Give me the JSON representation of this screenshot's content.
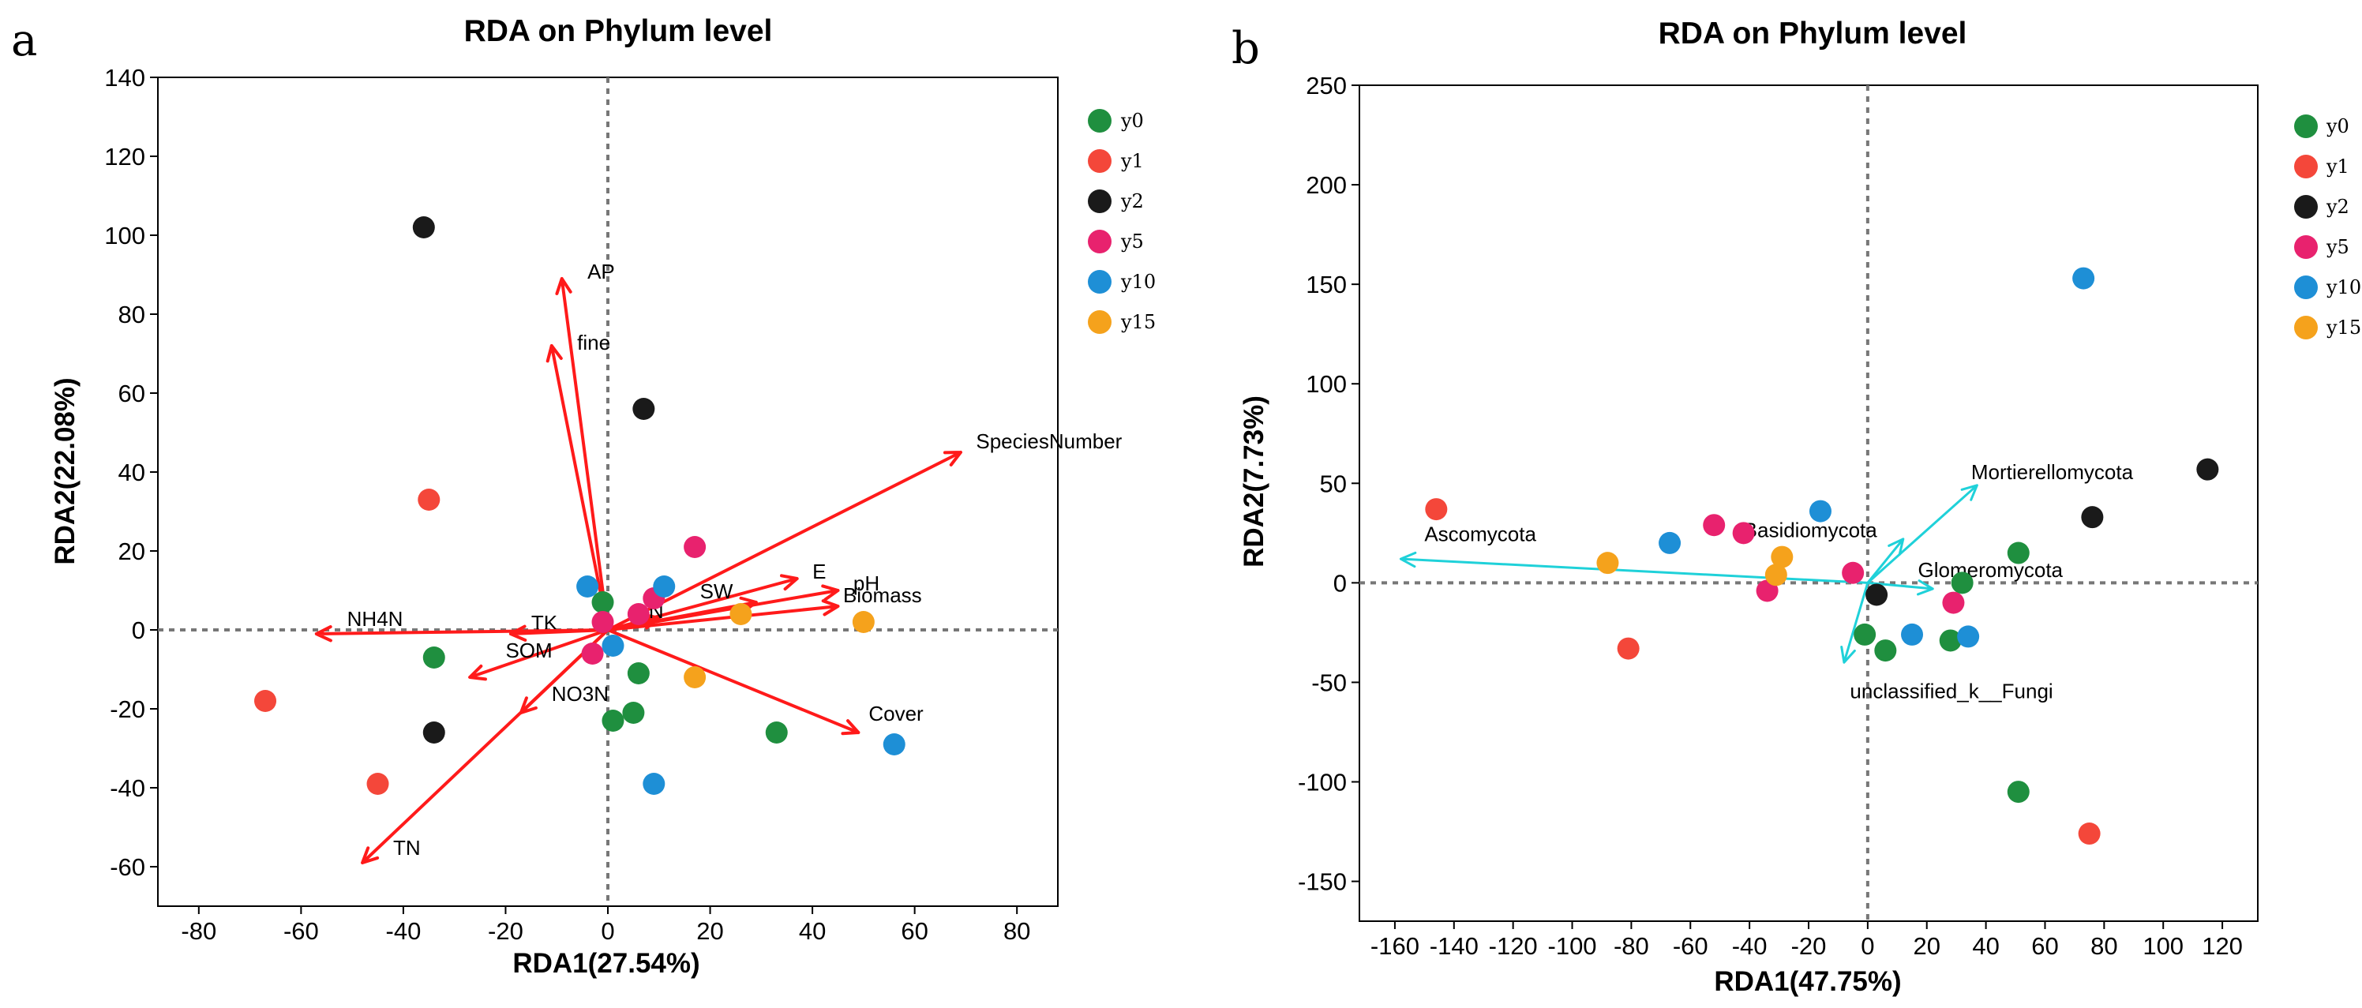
{
  "chart_data": [
    {
      "type": "scatter",
      "panel_letter": "a",
      "title": "RDA on Phylum level",
      "xlabel": "RDA1(27.54%)",
      "ylabel": "RDA2(22.08%)",
      "xlim": [
        -88,
        88
      ],
      "ylim": [
        -70,
        140
      ],
      "xticks": [
        -80,
        -60,
        -40,
        -20,
        0,
        20,
        40,
        60,
        80
      ],
      "yticks": [
        -60,
        -40,
        -20,
        0,
        20,
        40,
        60,
        80,
        100,
        120,
        140
      ],
      "grid": false,
      "legend_position": "right",
      "vector_color": "#ff1a1a",
      "series": [
        {
          "name": "y0",
          "color": "#1f8f3f",
          "points": [
            [
              -1,
              7
            ],
            [
              -34,
              -7
            ],
            [
              6,
              -11
            ],
            [
              5,
              -21
            ],
            [
              1,
              -23
            ],
            [
              33,
              -26
            ]
          ]
        },
        {
          "name": "y1",
          "color": "#f4473a",
          "points": [
            [
              -35,
              33
            ],
            [
              -67,
              -18
            ],
            [
              -45,
              -39
            ]
          ]
        },
        {
          "name": "y2",
          "color": "#1a1a1a",
          "points": [
            [
              -36,
              102
            ],
            [
              7,
              56
            ],
            [
              -34,
              -26
            ]
          ]
        },
        {
          "name": "y5",
          "color": "#e8226e",
          "points": [
            [
              17,
              21
            ],
            [
              9,
              8
            ],
            [
              6,
              4
            ],
            [
              -1,
              2
            ],
            [
              -3,
              -6
            ]
          ]
        },
        {
          "name": "y10",
          "color": "#1e8fd6",
          "points": [
            [
              -4,
              11
            ],
            [
              11,
              11
            ],
            [
              1,
              -4
            ],
            [
              9,
              -39
            ],
            [
              56,
              -29
            ]
          ]
        },
        {
          "name": "y15",
          "color": "#f5a21c",
          "points": [
            [
              26,
              4
            ],
            [
              50,
              2
            ],
            [
              17,
              -12
            ]
          ]
        }
      ],
      "vectors": [
        {
          "name": "AP",
          "x": -9,
          "y": 89,
          "label_x": -4,
          "label_y": 89
        },
        {
          "name": "fine",
          "x": -11,
          "y": 72,
          "label_x": -6,
          "label_y": 71
        },
        {
          "name": "SpeciesNumber",
          "x": 69,
          "y": 45,
          "label_x": 72,
          "label_y": 46
        },
        {
          "name": "E",
          "x": 37,
          "y": 13,
          "label_x": 40,
          "label_y": 13
        },
        {
          "name": "pH",
          "x": 45,
          "y": 10,
          "label_x": 48,
          "label_y": 10
        },
        {
          "name": "Biomass",
          "x": 45,
          "y": 6,
          "label_x": 46,
          "label_y": 7
        },
        {
          "name": "SW",
          "x": 29,
          "y": 7,
          "label_x": 18,
          "label_y": 8
        },
        {
          "name": "Cover",
          "x": 49,
          "y": -26,
          "label_x": 51,
          "label_y": -23
        },
        {
          "name": "TK",
          "x": -19,
          "y": -1,
          "label_x": -15,
          "label_y": 0
        },
        {
          "name": "NH4N",
          "x": -57,
          "y": -1,
          "label_x": -51,
          "label_y": 1
        },
        {
          "name": "SOM",
          "x": -27,
          "y": -12,
          "label_x": -20,
          "label_y": -7
        },
        {
          "name": "NO3N",
          "x": -17,
          "y": -21,
          "label_x": -11,
          "label_y": -18
        },
        {
          "name": "TN",
          "x": -48,
          "y": -59,
          "label_x": -42,
          "label_y": -57
        },
        {
          "name": "N",
          "x": 10,
          "y": 3,
          "label_x": 8,
          "label_y": 3
        }
      ]
    },
    {
      "type": "scatter",
      "panel_letter": "b",
      "title": "RDA on Phylum level",
      "xlabel": "RDA1(47.75%)",
      "ylabel": "RDA2(7.73%)",
      "xlim": [
        -172,
        132
      ],
      "ylim": [
        -170,
        250
      ],
      "xticks": [
        -160,
        -140,
        -120,
        -100,
        -80,
        -60,
        -40,
        -20,
        0,
        20,
        40,
        60,
        80,
        100,
        120
      ],
      "yticks": [
        -150,
        -100,
        -50,
        0,
        50,
        100,
        150,
        200,
        250
      ],
      "grid": false,
      "legend_position": "right",
      "vector_color": "#1fd1d9",
      "series": [
        {
          "name": "y0",
          "color": "#1f8f3f",
          "points": [
            [
              51,
              15
            ],
            [
              32,
              0
            ],
            [
              -1,
              -26
            ],
            [
              6,
              -34
            ],
            [
              28,
              -29
            ],
            [
              51,
              -105
            ]
          ]
        },
        {
          "name": "y1",
          "color": "#f4473a",
          "points": [
            [
              -146,
              37
            ],
            [
              -81,
              -33
            ],
            [
              75,
              -126
            ]
          ]
        },
        {
          "name": "y2",
          "color": "#1a1a1a",
          "points": [
            [
              115,
              57
            ],
            [
              76,
              33
            ],
            [
              3,
              -6
            ]
          ]
        },
        {
          "name": "y5",
          "color": "#e8226e",
          "points": [
            [
              -52,
              29
            ],
            [
              -42,
              25
            ],
            [
              -5,
              5
            ],
            [
              -34,
              -4
            ],
            [
              29,
              -10
            ]
          ]
        },
        {
          "name": "y10",
          "color": "#1e8fd6",
          "points": [
            [
              73,
              153
            ],
            [
              -16,
              36
            ],
            [
              -67,
              20
            ],
            [
              15,
              -26
            ],
            [
              34,
              -27
            ]
          ]
        },
        {
          "name": "y15",
          "color": "#f5a21c",
          "points": [
            [
              -88,
              10
            ],
            [
              -29,
              13
            ],
            [
              -31,
              4
            ]
          ]
        }
      ],
      "vectors": [
        {
          "name": "Ascomycota",
          "x": -158,
          "y": 12,
          "label_x": -150,
          "label_y": 21
        },
        {
          "name": "Mortierellomycota",
          "x": 37,
          "y": 49,
          "label_x": 35,
          "label_y": 52
        },
        {
          "name": "Basidiomycota",
          "x": 12,
          "y": 22,
          "label_x": -42,
          "label_y": 23
        },
        {
          "name": "Glomeromycota",
          "x": 22,
          "y": -3,
          "label_x": 17,
          "label_y": 3
        },
        {
          "name": "unclassified_k__Fungi",
          "x": -8,
          "y": -40,
          "label_x": -6,
          "label_y": -58
        }
      ]
    }
  ]
}
